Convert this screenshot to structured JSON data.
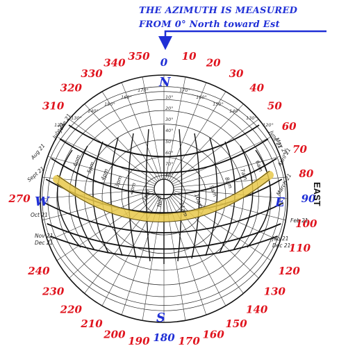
{
  "header": {
    "line1": "THE AZIMUTH IS MEASURED",
    "line2": "FROM 0° North toward Est"
  },
  "cardinals": {
    "n": "N",
    "s": "S",
    "e": "E",
    "w": "W",
    "east_word": "EAST"
  },
  "colors": {
    "azimuth_red": "#e0141e",
    "azimuth_blue": "#1f2fd6",
    "sun_path": "#e8c84a"
  },
  "azimuths": [
    {
      "label": "0",
      "deg": 0,
      "color": "blue"
    },
    {
      "label": "10",
      "deg": 10,
      "color": "red"
    },
    {
      "label": "20",
      "deg": 20,
      "color": "red"
    },
    {
      "label": "30",
      "deg": 30,
      "color": "red"
    },
    {
      "label": "40",
      "deg": 40,
      "color": "red"
    },
    {
      "label": "50",
      "deg": 50,
      "color": "red"
    },
    {
      "label": "60",
      "deg": 60,
      "color": "red"
    },
    {
      "label": "70",
      "deg": 70,
      "color": "red"
    },
    {
      "label": "80",
      "deg": 80,
      "color": "red"
    },
    {
      "label": "90",
      "deg": 90,
      "color": "blue"
    },
    {
      "label": "100",
      "deg": 100,
      "color": "red"
    },
    {
      "label": "110",
      "deg": 110,
      "color": "red"
    },
    {
      "label": "120",
      "deg": 120,
      "color": "red"
    },
    {
      "label": "130",
      "deg": 130,
      "color": "red"
    },
    {
      "label": "140",
      "deg": 140,
      "color": "red"
    },
    {
      "label": "150",
      "deg": 150,
      "color": "red"
    },
    {
      "label": "160",
      "deg": 160,
      "color": "red"
    },
    {
      "label": "170",
      "deg": 170,
      "color": "red"
    },
    {
      "label": "180",
      "deg": 180,
      "color": "blue"
    },
    {
      "label": "190",
      "deg": 190,
      "color": "red"
    },
    {
      "label": "200",
      "deg": 200,
      "color": "red"
    },
    {
      "label": "210",
      "deg": 210,
      "color": "red"
    },
    {
      "label": "220",
      "deg": 220,
      "color": "red"
    },
    {
      "label": "230",
      "deg": 230,
      "color": "red"
    },
    {
      "label": "240",
      "deg": 240,
      "color": "red"
    },
    {
      "label": "270",
      "deg": 270,
      "color": "red"
    },
    {
      "label": "310",
      "deg": 310,
      "color": "red"
    },
    {
      "label": "320",
      "deg": 320,
      "color": "red"
    },
    {
      "label": "330",
      "deg": 330,
      "color": "red"
    },
    {
      "label": "340",
      "deg": 340,
      "color": "red"
    },
    {
      "label": "350",
      "deg": 350,
      "color": "red"
    }
  ],
  "date_labels": {
    "june21_left": "June 21",
    "july21": "July 21",
    "aug21": "Aug 21",
    "sept21": "Sept 21",
    "oct21": "Oct 21",
    "nov21": "Nov 21",
    "dec21_left": "Dec 21",
    "june21_right": "June 21",
    "may21": "May 21",
    "april21": "April 21",
    "march21": "March 21",
    "feb21": "Feb 21",
    "jan21": "Jan 21",
    "dec21_right": "Dec 21"
  },
  "hour_labels": {
    "left": [
      "6pm",
      "5pm",
      "4pm",
      "3pm",
      "2pm",
      "1pm"
    ],
    "noon": "Noon",
    "right": [
      "11am",
      "10am",
      "9am",
      "8am",
      "7am",
      "6am"
    ]
  },
  "altitude_ticks": [
    "10°",
    "20°",
    "30°",
    "40°",
    "50°",
    "60°",
    "70°",
    "80°"
  ],
  "ring_ticks": [
    "170°",
    "160°",
    "150°",
    "140°",
    "130°",
    "120°"
  ]
}
